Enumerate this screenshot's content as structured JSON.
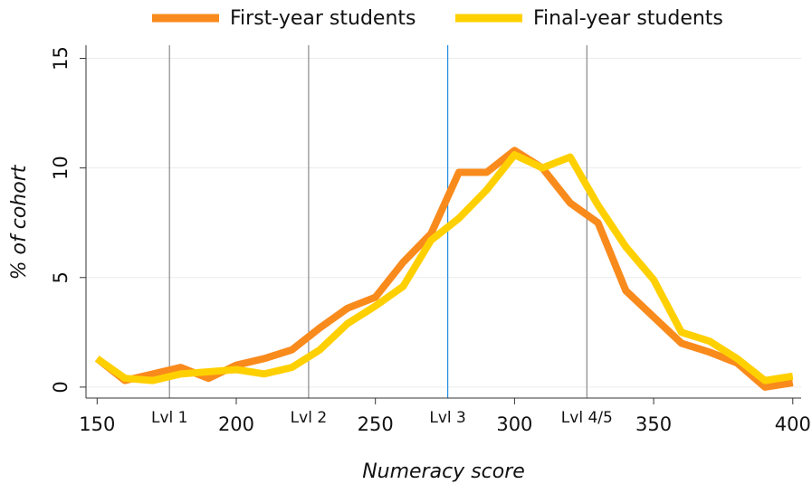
{
  "chart_data": {
    "type": "line",
    "x_label": "Numeracy score",
    "y_label": "% of cohort",
    "x": [
      150,
      160,
      170,
      180,
      190,
      200,
      210,
      220,
      230,
      240,
      250,
      260,
      270,
      280,
      290,
      300,
      310,
      320,
      330,
      340,
      350,
      360,
      370,
      380,
      390,
      400
    ],
    "series": [
      {
        "name": "First-year students",
        "color": "#f98a1c",
        "values": [
          1.3,
          0.3,
          0.6,
          0.9,
          0.4,
          1.0,
          1.3,
          1.7,
          2.7,
          3.6,
          4.1,
          5.7,
          7.0,
          9.8,
          9.8,
          10.8,
          10.0,
          8.4,
          7.5,
          4.4,
          3.2,
          2.0,
          1.6,
          1.1,
          0.0,
          0.2
        ]
      },
      {
        "name": "Final-year students",
        "color": "#ffd000",
        "values": [
          1.3,
          0.4,
          0.3,
          0.6,
          0.7,
          0.8,
          0.6,
          0.9,
          1.7,
          2.9,
          3.7,
          4.6,
          6.7,
          7.7,
          9.0,
          10.6,
          10.0,
          10.5,
          8.3,
          6.4,
          4.9,
          2.5,
          2.1,
          1.3,
          0.3,
          0.5
        ]
      }
    ],
    "reference_lines": [
      {
        "value": 176,
        "label": "Lvl 1",
        "color": "#8a8a8a"
      },
      {
        "value": 226,
        "label": "Lvl 2",
        "color": "#8a8a8a"
      },
      {
        "value": 276,
        "label": "Lvl 3",
        "color": "#1f8fe6"
      },
      {
        "value": 326,
        "label": "Lvl 4/5",
        "color": "#8a8a8a"
      }
    ],
    "xlim": [
      146,
      403
    ],
    "xticks": [
      150,
      200,
      250,
      300,
      350,
      400
    ],
    "ylim": [
      -0.5,
      15.6
    ],
    "yticks": [
      0,
      5,
      10,
      15
    ],
    "grid": true,
    "legend": "top"
  }
}
